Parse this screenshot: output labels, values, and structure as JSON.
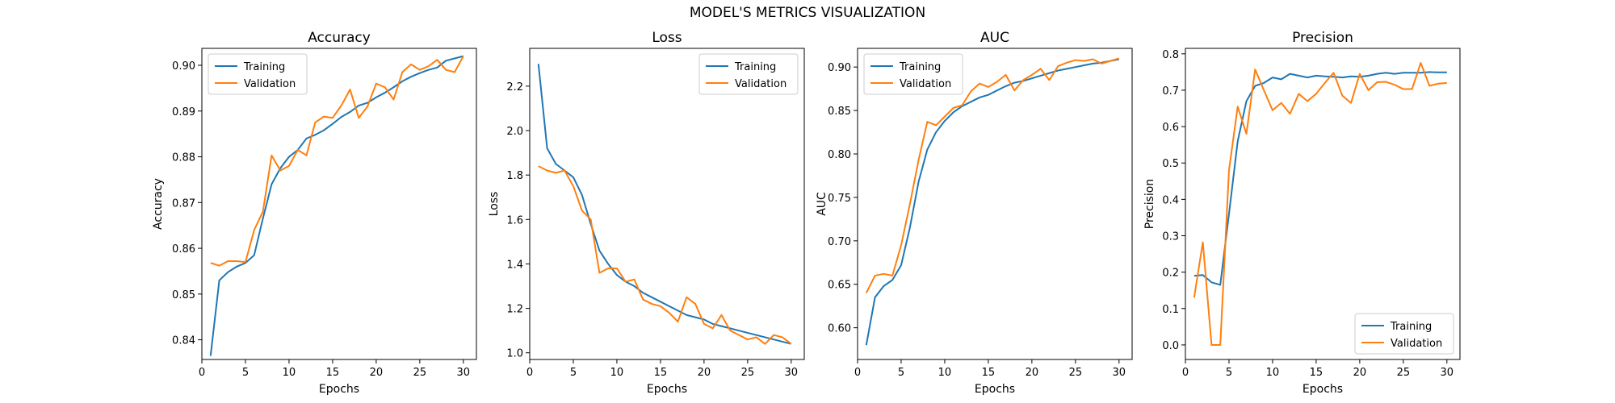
{
  "figure": {
    "title": "MODEL'S METRICS VISUALIZATION"
  },
  "colors": {
    "training": "#1f77b4",
    "validation": "#ff7f0e"
  },
  "chart_data": [
    {
      "type": "line",
      "title": "Accuracy",
      "xlabel": "Epochs",
      "ylabel": "Accuracy",
      "xlim": [
        0,
        31.5
      ],
      "ylim": [
        0.8357,
        0.9037
      ],
      "xticks": [
        0,
        5,
        10,
        15,
        20,
        25,
        30
      ],
      "yticks": [
        0.84,
        0.85,
        0.86,
        0.87,
        0.88,
        0.89,
        0.9
      ],
      "ytick_labels": [
        "0.84",
        "0.85",
        "0.86",
        "0.87",
        "0.88",
        "0.89",
        "0.90"
      ],
      "legend": "upper-left",
      "x": [
        1,
        2,
        3,
        4,
        5,
        6,
        7,
        8,
        9,
        10,
        11,
        12,
        13,
        14,
        15,
        16,
        17,
        18,
        19,
        20,
        21,
        22,
        23,
        24,
        25,
        26,
        27,
        28,
        29,
        30
      ],
      "series": [
        {
          "name": "Training",
          "color": "#1f77b4",
          "values": [
            0.8365,
            0.853,
            0.8548,
            0.856,
            0.8568,
            0.8585,
            0.8665,
            0.874,
            0.8775,
            0.88,
            0.8815,
            0.884,
            0.8848,
            0.8858,
            0.8872,
            0.8887,
            0.8898,
            0.8912,
            0.8918,
            0.893,
            0.894,
            0.8952,
            0.8965,
            0.8975,
            0.8983,
            0.899,
            0.8995,
            0.901,
            0.9015,
            0.902
          ]
        },
        {
          "name": "Validation",
          "color": "#ff7f0e",
          "values": [
            0.8568,
            0.8562,
            0.8572,
            0.8572,
            0.857,
            0.864,
            0.868,
            0.8803,
            0.877,
            0.878,
            0.8815,
            0.8803,
            0.8875,
            0.8888,
            0.8885,
            0.8912,
            0.8947,
            0.8885,
            0.891,
            0.896,
            0.8952,
            0.8925,
            0.8985,
            0.9002,
            0.899,
            0.8998,
            0.9012,
            0.899,
            0.8985,
            0.902
          ]
        }
      ]
    },
    {
      "type": "line",
      "title": "Loss",
      "xlabel": "Epochs",
      "ylabel": "Loss",
      "xlim": [
        0,
        31.5
      ],
      "ylim": [
        0.97,
        2.37
      ],
      "xticks": [
        0,
        5,
        10,
        15,
        20,
        25,
        30
      ],
      "yticks": [
        1.0,
        1.2,
        1.4,
        1.6,
        1.8,
        2.0,
        2.2
      ],
      "ytick_labels": [
        "1.0",
        "1.2",
        "1.4",
        "1.6",
        "1.8",
        "2.0",
        "2.2"
      ],
      "legend": "upper-right",
      "x": [
        1,
        2,
        3,
        4,
        5,
        6,
        7,
        8,
        9,
        10,
        11,
        12,
        13,
        14,
        15,
        16,
        17,
        18,
        19,
        20,
        21,
        22,
        23,
        24,
        25,
        26,
        27,
        28,
        29,
        30
      ],
      "series": [
        {
          "name": "Training",
          "color": "#1f77b4",
          "values": [
            2.3,
            1.92,
            1.85,
            1.82,
            1.79,
            1.71,
            1.58,
            1.46,
            1.4,
            1.35,
            1.32,
            1.3,
            1.27,
            1.25,
            1.23,
            1.21,
            1.19,
            1.17,
            1.16,
            1.15,
            1.13,
            1.12,
            1.11,
            1.1,
            1.09,
            1.08,
            1.07,
            1.06,
            1.05,
            1.04
          ]
        },
        {
          "name": "Validation",
          "color": "#ff7f0e",
          "values": [
            1.84,
            1.82,
            1.81,
            1.82,
            1.75,
            1.64,
            1.6,
            1.36,
            1.38,
            1.38,
            1.32,
            1.33,
            1.24,
            1.22,
            1.21,
            1.18,
            1.14,
            1.25,
            1.22,
            1.13,
            1.11,
            1.17,
            1.1,
            1.08,
            1.06,
            1.07,
            1.04,
            1.08,
            1.07,
            1.04
          ]
        }
      ]
    },
    {
      "type": "line",
      "title": "AUC",
      "xlabel": "Epochs",
      "ylabel": "AUC",
      "xlim": [
        0,
        31.5
      ],
      "ylim": [
        0.5635,
        0.9215
      ],
      "xticks": [
        0,
        5,
        10,
        15,
        20,
        25,
        30
      ],
      "yticks": [
        0.6,
        0.65,
        0.7,
        0.75,
        0.8,
        0.85,
        0.9
      ],
      "ytick_labels": [
        "0.60",
        "0.65",
        "0.70",
        "0.75",
        "0.80",
        "0.85",
        "0.90"
      ],
      "legend": "upper-left",
      "x": [
        1,
        2,
        3,
        4,
        5,
        6,
        7,
        8,
        9,
        10,
        11,
        12,
        13,
        14,
        15,
        16,
        17,
        18,
        19,
        20,
        21,
        22,
        23,
        24,
        25,
        26,
        27,
        28,
        29,
        30
      ],
      "series": [
        {
          "name": "Training",
          "color": "#1f77b4",
          "values": [
            0.58,
            0.635,
            0.648,
            0.655,
            0.672,
            0.715,
            0.768,
            0.805,
            0.825,
            0.838,
            0.848,
            0.855,
            0.86,
            0.865,
            0.868,
            0.873,
            0.878,
            0.882,
            0.884,
            0.887,
            0.89,
            0.893,
            0.896,
            0.898,
            0.9,
            0.902,
            0.904,
            0.905,
            0.907,
            0.909
          ]
        },
        {
          "name": "Validation",
          "color": "#ff7f0e",
          "values": [
            0.64,
            0.66,
            0.662,
            0.66,
            0.695,
            0.742,
            0.793,
            0.837,
            0.833,
            0.843,
            0.853,
            0.856,
            0.872,
            0.881,
            0.877,
            0.883,
            0.891,
            0.873,
            0.885,
            0.891,
            0.898,
            0.885,
            0.901,
            0.905,
            0.908,
            0.907,
            0.909,
            0.904,
            0.907,
            0.91
          ]
        }
      ]
    },
    {
      "type": "line",
      "title": "Precision",
      "xlabel": "Epochs",
      "ylabel": "Precision",
      "xlim": [
        0,
        31.5
      ],
      "ylim": [
        -0.04,
        0.815
      ],
      "xticks": [
        0,
        5,
        10,
        15,
        20,
        25,
        30
      ],
      "yticks": [
        0.0,
        0.1,
        0.2,
        0.3,
        0.4,
        0.5,
        0.6,
        0.7,
        0.8
      ],
      "ytick_labels": [
        "0.0",
        "0.1",
        "0.2",
        "0.3",
        "0.4",
        "0.5",
        "0.6",
        "0.7",
        "0.8"
      ],
      "legend": "lower-right",
      "x": [
        1,
        2,
        3,
        4,
        5,
        6,
        7,
        8,
        9,
        10,
        11,
        12,
        13,
        14,
        15,
        16,
        17,
        18,
        19,
        20,
        21,
        22,
        23,
        24,
        25,
        26,
        27,
        28,
        29,
        30
      ],
      "series": [
        {
          "name": "Training",
          "color": "#1f77b4",
          "values": [
            0.19,
            0.192,
            0.172,
            0.165,
            0.36,
            0.56,
            0.67,
            0.712,
            0.72,
            0.735,
            0.73,
            0.745,
            0.74,
            0.735,
            0.74,
            0.738,
            0.737,
            0.735,
            0.738,
            0.737,
            0.74,
            0.745,
            0.748,
            0.745,
            0.748,
            0.748,
            0.748,
            0.75,
            0.749,
            0.749
          ]
        },
        {
          "name": "Validation",
          "color": "#ff7f0e",
          "values": [
            0.13,
            0.282,
            0.0,
            0.0,
            0.48,
            0.655,
            0.58,
            0.757,
            0.7,
            0.645,
            0.665,
            0.635,
            0.69,
            0.67,
            0.69,
            0.72,
            0.748,
            0.685,
            0.665,
            0.745,
            0.7,
            0.722,
            0.723,
            0.715,
            0.703,
            0.703,
            0.775,
            0.712,
            0.718,
            0.72
          ]
        }
      ]
    }
  ]
}
